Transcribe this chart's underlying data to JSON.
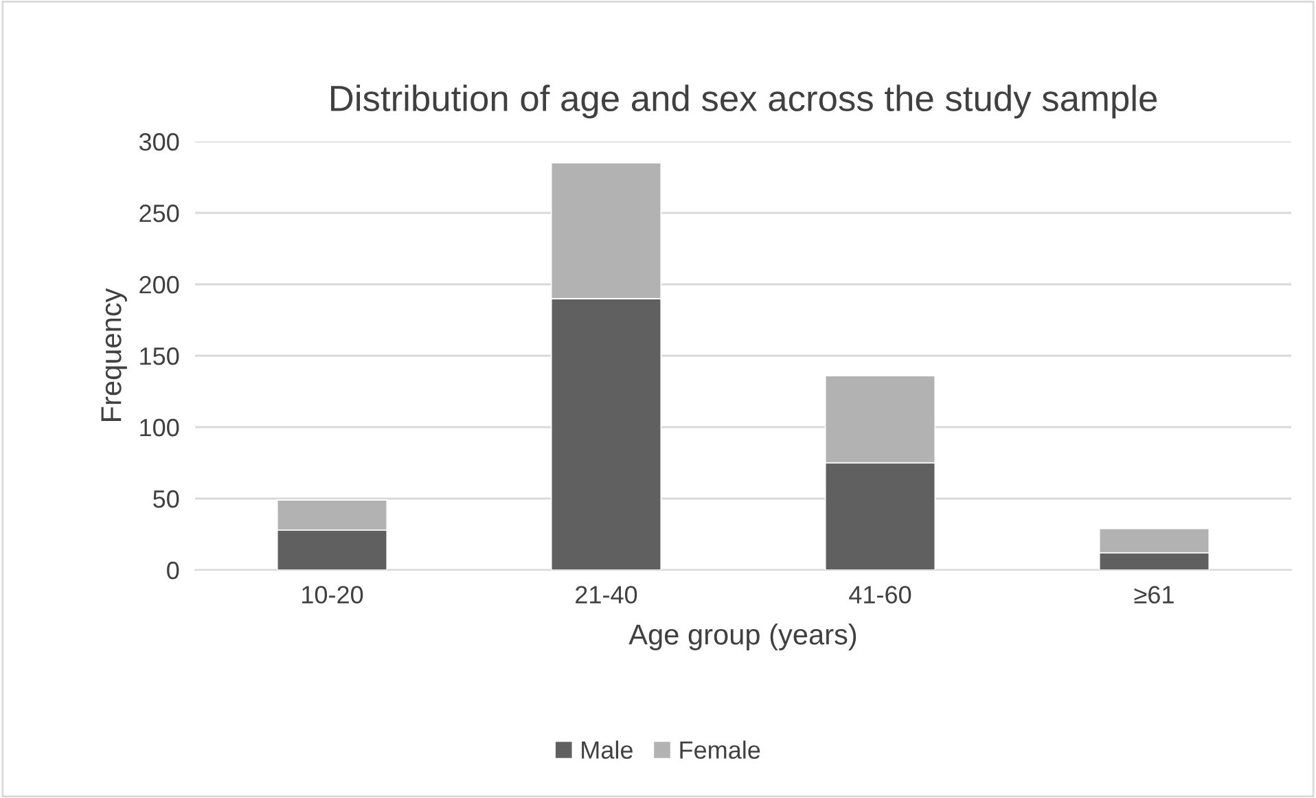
{
  "chart_data": {
    "type": "bar",
    "title": "Distribution of age and sex across the study sample",
    "xlabel": "Age group (years)",
    "ylabel": "Frequency",
    "categories": [
      "10-20",
      "21-40",
      "41-60",
      "≥61"
    ],
    "series": [
      {
        "name": "Male",
        "color": "#606060",
        "values": [
          28,
          190,
          75,
          12
        ]
      },
      {
        "name": "Female",
        "color": "#b2b2b2",
        "values": [
          21,
          95,
          61,
          17
        ]
      }
    ],
    "stacked": true,
    "ylim": [
      0,
      300
    ],
    "yticks": [
      0,
      50,
      100,
      150,
      200,
      250,
      300
    ],
    "grid": "y",
    "legend": "bottom"
  }
}
